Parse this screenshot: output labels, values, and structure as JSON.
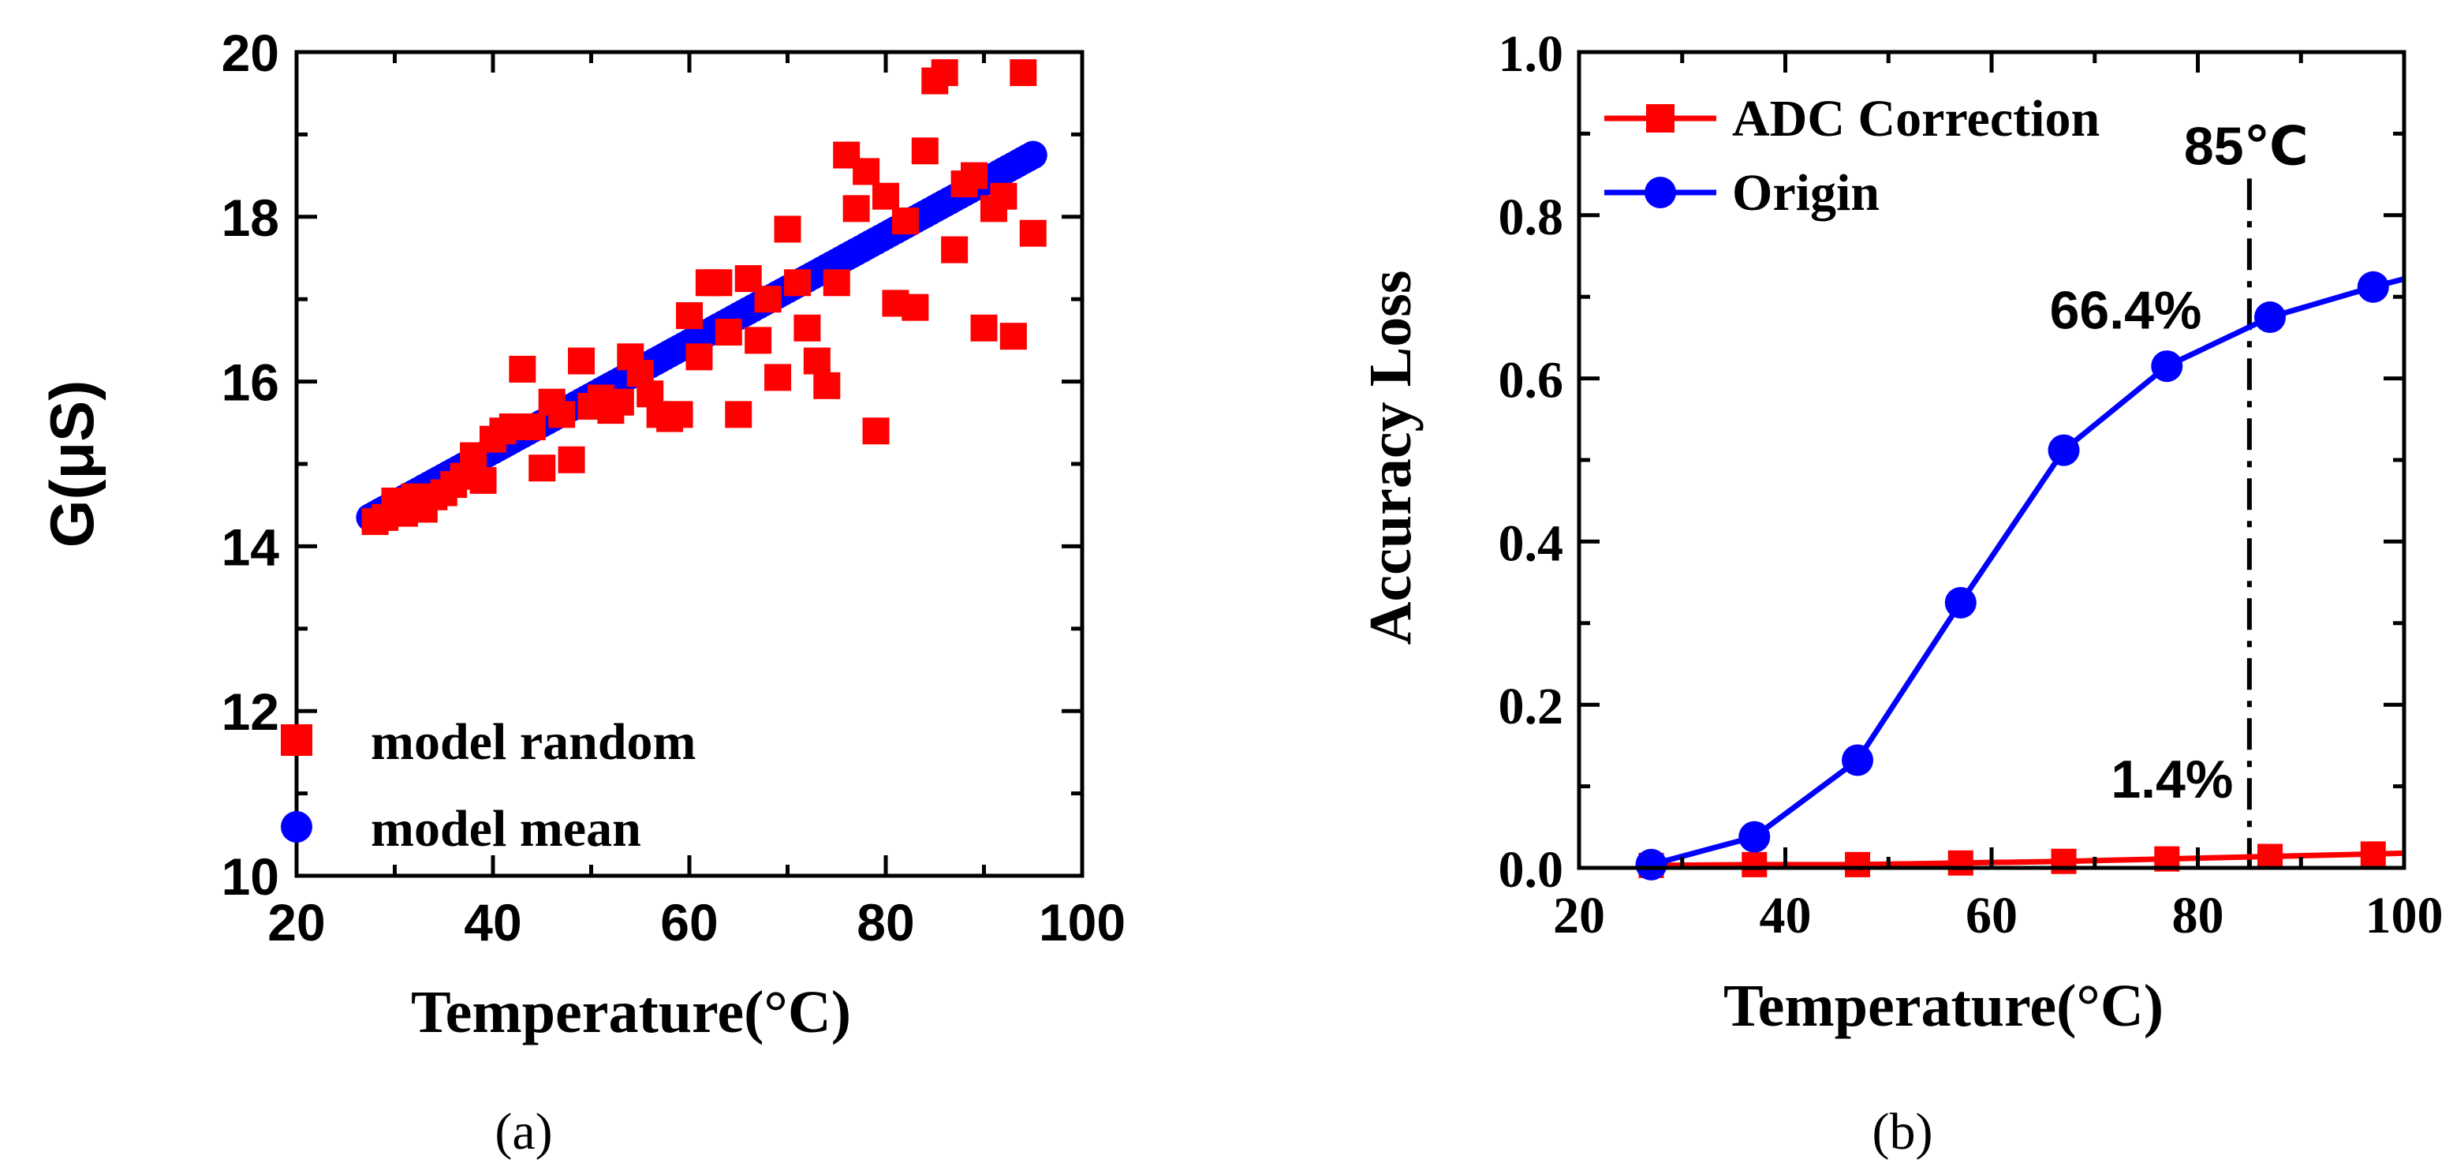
{
  "chart_data": [
    {
      "panel": "(a)",
      "type": "scatter",
      "title": "",
      "xlabel": "Temperature(°C)",
      "ylabel": "G(μS)",
      "xlim": [
        20,
        100
      ],
      "ylim": [
        10,
        20
      ],
      "xticks": [
        "20",
        "40",
        "60",
        "80",
        "100"
      ],
      "yticks": [
        "10",
        "12",
        "14",
        "16",
        "18",
        "20"
      ],
      "legend_position": "bottom-left",
      "series": [
        {
          "name": "model random",
          "color": "#ff0000",
          "marker": "square",
          "x": [
            28,
            29,
            30,
            31,
            32,
            33,
            34,
            35,
            36,
            37,
            38,
            39,
            40,
            41,
            42,
            43,
            44,
            45,
            46,
            47,
            48,
            49,
            50,
            51,
            52,
            53,
            54,
            55,
            56,
            57,
            58,
            59,
            60,
            61,
            62,
            63,
            64,
            65,
            66,
            67,
            68,
            69,
            70,
            71,
            72,
            73,
            74,
            75,
            76,
            77,
            78,
            79,
            80,
            81,
            82,
            83,
            84,
            85,
            86,
            87,
            88,
            89,
            90,
            91,
            92,
            93,
            94,
            95
          ],
          "values": [
            14.3,
            14.35,
            14.55,
            14.4,
            14.6,
            14.45,
            14.6,
            14.65,
            14.75,
            14.85,
            15.1,
            14.8,
            15.3,
            15.4,
            15.45,
            16.15,
            15.45,
            14.95,
            15.75,
            15.6,
            15.05,
            16.25,
            15.7,
            15.8,
            15.65,
            15.75,
            16.3,
            16.1,
            15.85,
            15.6,
            15.55,
            15.6,
            16.8,
            16.3,
            17.2,
            17.2,
            16.6,
            15.6,
            17.25,
            16.5,
            17.0,
            16.05,
            17.85,
            17.2,
            16.65,
            16.25,
            15.95,
            17.2,
            18.75,
            18.1,
            18.55,
            15.4,
            18.25,
            16.95,
            17.95,
            16.9,
            18.8,
            19.65,
            19.75,
            17.6,
            18.4,
            18.5,
            16.65,
            18.1,
            18.25,
            16.55,
            19.75,
            17.8
          ]
        },
        {
          "name": "model mean",
          "color": "#0000ff",
          "marker": "circle",
          "linear_fit": {
            "x_start": 27.5,
            "x_end": 95,
            "y_start": 14.35,
            "y_end": 18.75,
            "step": 0.5
          }
        }
      ]
    },
    {
      "panel": "(b)",
      "type": "line",
      "title": "",
      "xlabel": "Temperature(°C)",
      "ylabel": "Accuracy Loss",
      "xlim": [
        20,
        100
      ],
      "ylim": [
        0,
        1.0
      ],
      "xticks": [
        "20",
        "40",
        "60",
        "80",
        "100"
      ],
      "yticks": [
        "0.0",
        "0.2",
        "0.4",
        "0.6",
        "0.8",
        "1.0"
      ],
      "legend_position": "top-left",
      "series": [
        {
          "name": "ADC Correction",
          "color": "#ff0000",
          "marker": "square",
          "x": [
            27,
            37,
            47,
            57,
            67,
            77,
            87,
            97
          ],
          "values": [
            0.003,
            0.004,
            0.004,
            0.006,
            0.008,
            0.011,
            0.014,
            0.017
          ],
          "line_end": [
            100,
            0.018
          ]
        },
        {
          "name": "Origin",
          "color": "#0000ff",
          "marker": "circle",
          "x": [
            27,
            37,
            47,
            57,
            67,
            77,
            87,
            97
          ],
          "values": [
            0.004,
            0.038,
            0.132,
            0.325,
            0.512,
            0.615,
            0.675,
            0.712
          ],
          "line_end": [
            100,
            0.722
          ]
        }
      ],
      "vline": {
        "x": 85,
        "label": "85℃"
      },
      "annotations": [
        {
          "text": "66.4%",
          "x": 73,
          "y": 0.665
        },
        {
          "text": "1.4%",
          "x": 77.5,
          "y": 0.09
        }
      ]
    }
  ],
  "panel_labels": [
    "(a)",
    "(b)"
  ]
}
